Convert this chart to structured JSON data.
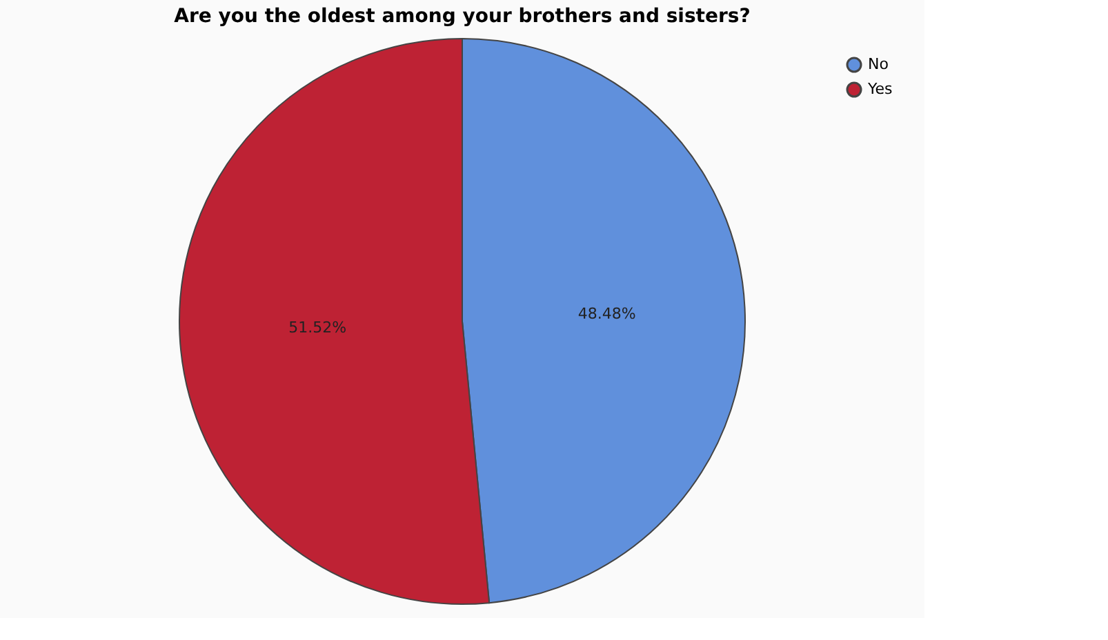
{
  "chart_data": {
    "type": "pie",
    "title": "Are you the oldest among your brothers and sisters?",
    "categories": [
      "No",
      "Yes"
    ],
    "values": [
      48.48,
      51.52
    ],
    "colors": [
      "#6090dc",
      "#be2234"
    ],
    "value_labels": [
      "48.48%",
      "51.52%"
    ],
    "legend": "top right"
  }
}
